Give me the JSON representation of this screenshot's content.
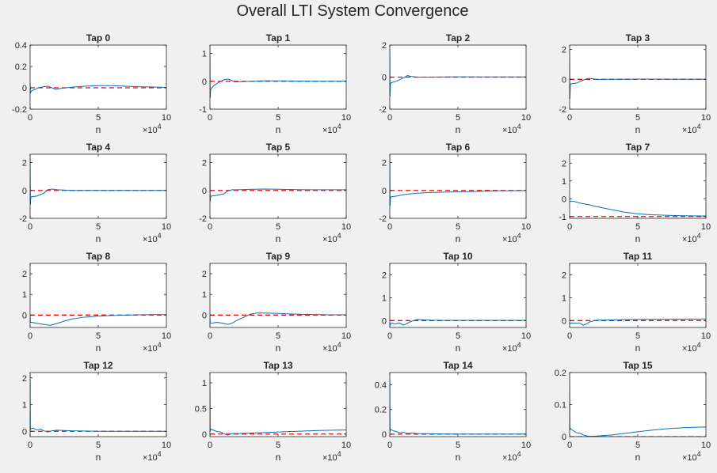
{
  "figure": {
    "title": "Overall LTI System Convergence",
    "colors": {
      "background": "#f0f0f0",
      "axes_background": "#ffffff",
      "estimate_line": "#0072bd",
      "target_line": "#ff0000",
      "axis": "#262626"
    }
  },
  "chart_data": [
    {
      "type": "line",
      "title": "Tap 0",
      "xlabel": "n",
      "x_exponent": "×10^4",
      "xlim": [
        0,
        10
      ],
      "ylim": [
        -0.2,
        0.4
      ],
      "xticks": [
        0,
        5,
        10
      ],
      "yticks": [
        -0.2,
        0,
        0.2,
        0.4
      ],
      "target": 0,
      "series": [
        {
          "x": [
            0,
            0.02,
            0.1,
            0.3,
            0.6,
            1.0,
            1.3,
            1.6,
            1.9,
            2.3,
            3,
            4,
            5,
            6,
            7,
            8,
            9,
            10
          ],
          "y": [
            0.05,
            -0.05,
            -0.03,
            -0.02,
            0,
            0.01,
            0.015,
            0,
            -0.015,
            -0.005,
            0.005,
            0.015,
            0.02,
            0.02,
            0.015,
            0.01,
            0.007,
            0.004
          ]
        }
      ]
    },
    {
      "type": "line",
      "title": "Tap 1",
      "xlabel": "n",
      "x_exponent": "×10^4",
      "xlim": [
        0,
        10
      ],
      "ylim": [
        -1,
        1.3
      ],
      "xticks": [
        0,
        5,
        10
      ],
      "yticks": [
        -1,
        0,
        1
      ],
      "target": 0,
      "series": [
        {
          "x": [
            0,
            0.02,
            0.05,
            0.1,
            0.3,
            0.6,
            1.0,
            1.3,
            1.5,
            1.8,
            2.5,
            4,
            6,
            8,
            10
          ],
          "y": [
            1.2,
            -0.6,
            -0.3,
            -0.25,
            -0.15,
            -0.05,
            0.05,
            0.08,
            0.05,
            -0.02,
            -0.01,
            0.02,
            0.01,
            0.005,
            0.005
          ]
        }
      ]
    },
    {
      "type": "line",
      "title": "Tap 2",
      "xlabel": "n",
      "x_exponent": "×10^4",
      "xlim": [
        0,
        10
      ],
      "ylim": [
        -2,
        2
      ],
      "xticks": [
        0,
        5,
        10
      ],
      "yticks": [
        -2,
        0,
        2
      ],
      "target": 0,
      "series": [
        {
          "x": [
            0,
            0.02,
            0.05,
            0.1,
            0.5,
            1.0,
            1.3,
            1.5,
            2,
            3,
            5,
            7,
            10
          ],
          "y": [
            1.8,
            -1.2,
            -0.4,
            -0.35,
            -0.25,
            -0.05,
            0.1,
            0.05,
            0,
            0,
            0.02,
            0.01,
            0.01
          ]
        }
      ]
    },
    {
      "type": "line",
      "title": "Tap 3",
      "xlabel": "n",
      "x_exponent": "×10^4",
      "xlim": [
        0,
        10
      ],
      "ylim": [
        -2,
        2.3
      ],
      "xticks": [
        0,
        5,
        10
      ],
      "yticks": [
        -2,
        0,
        2
      ],
      "target": 0,
      "series": [
        {
          "x": [
            0,
            0.02,
            0.05,
            0.1,
            0.5,
            1.0,
            1.3,
            1.6,
            2,
            3,
            5,
            7,
            10
          ],
          "y": [
            2.0,
            -1.3,
            -0.35,
            -0.3,
            -0.25,
            -0.05,
            0.05,
            0.05,
            0,
            0,
            0.02,
            0.01,
            0.01
          ]
        }
      ]
    },
    {
      "type": "line",
      "title": "Tap 4",
      "xlabel": "n",
      "x_exponent": "×10^4",
      "xlim": [
        0,
        10
      ],
      "ylim": [
        -2,
        2.6
      ],
      "xticks": [
        0,
        5,
        10
      ],
      "yticks": [
        -2,
        0,
        2
      ],
      "target": 0,
      "series": [
        {
          "x": [
            0,
            0.02,
            0.05,
            0.1,
            0.5,
            1.0,
            1.3,
            1.6,
            2,
            3,
            5,
            7,
            10
          ],
          "y": [
            2.4,
            -1.0,
            -0.5,
            -0.45,
            -0.4,
            -0.2,
            0.05,
            0.1,
            0.05,
            0,
            0,
            0,
            0
          ]
        }
      ]
    },
    {
      "type": "line",
      "title": "Tap 5",
      "xlabel": "n",
      "x_exponent": "×10^4",
      "xlim": [
        0,
        10
      ],
      "ylim": [
        -2,
        2.6
      ],
      "xticks": [
        0,
        5,
        10
      ],
      "yticks": [
        -2,
        0,
        2
      ],
      "target": 0,
      "series": [
        {
          "x": [
            0,
            0.02,
            0.05,
            0.1,
            0.5,
            1.0,
            1.3,
            1.6,
            2,
            3,
            4,
            5,
            7,
            10
          ],
          "y": [
            2.4,
            -0.8,
            -0.45,
            -0.4,
            -0.35,
            -0.25,
            -0.05,
            0.05,
            0.05,
            0.08,
            0.1,
            0.09,
            0.05,
            0.05
          ]
        }
      ]
    },
    {
      "type": "line",
      "title": "Tap 6",
      "xlabel": "n",
      "x_exponent": "×10^4",
      "xlim": [
        0,
        10
      ],
      "ylim": [
        -2,
        2.6
      ],
      "xticks": [
        0,
        5,
        10
      ],
      "yticks": [
        -2,
        0,
        2
      ],
      "target": 0,
      "series": [
        {
          "x": [
            0,
            0.02,
            0.05,
            0.1,
            0.5,
            1.0,
            1.5,
            2,
            3,
            4,
            5,
            6,
            7,
            8,
            9,
            10
          ],
          "y": [
            2.4,
            -1.1,
            -0.5,
            -0.45,
            -0.4,
            -0.3,
            -0.25,
            -0.2,
            -0.15,
            -0.12,
            -0.1,
            -0.08,
            -0.05,
            -0.03,
            -0.02,
            -0.01
          ]
        }
      ]
    },
    {
      "type": "line",
      "title": "Tap 7",
      "xlabel": "n",
      "x_exponent": "×10^4",
      "xlim": [
        0,
        10
      ],
      "ylim": [
        -1.1,
        2.5
      ],
      "xticks": [
        0,
        5,
        10
      ],
      "yticks": [
        -1,
        0,
        1,
        2
      ],
      "target": -1,
      "series": [
        {
          "x": [
            0,
            0.02,
            0.3,
            0.8,
            1.5,
            2,
            3,
            4,
            5,
            6,
            7,
            8,
            9,
            10
          ],
          "y": [
            -0.1,
            -0.15,
            -0.15,
            -0.25,
            -0.35,
            -0.45,
            -0.6,
            -0.75,
            -0.85,
            -0.9,
            -0.93,
            -0.95,
            -0.96,
            -0.97
          ]
        }
      ]
    },
    {
      "type": "line",
      "title": "Tap 8",
      "xlabel": "n",
      "x_exponent": "×10^4",
      "xlim": [
        0,
        10
      ],
      "ylim": [
        -0.6,
        2.5
      ],
      "xticks": [
        0,
        5,
        10
      ],
      "yticks": [
        0,
        1,
        2
      ],
      "target": 0,
      "series": [
        {
          "x": [
            0,
            0.02,
            0.1,
            0.5,
            1.0,
            1.5,
            2,
            2.5,
            3,
            4,
            5,
            6,
            7,
            8,
            9,
            10
          ],
          "y": [
            -0.05,
            -0.35,
            -0.35,
            -0.4,
            -0.45,
            -0.5,
            -0.4,
            -0.3,
            -0.2,
            -0.1,
            -0.05,
            -0.02,
            0,
            0.01,
            0.02,
            0.02
          ]
        }
      ]
    },
    {
      "type": "line",
      "title": "Tap 9",
      "xlabel": "n",
      "x_exponent": "×10^4",
      "xlim": [
        0,
        10
      ],
      "ylim": [
        -0.6,
        2.5
      ],
      "xticks": [
        0,
        5,
        10
      ],
      "yticks": [
        0,
        1,
        2
      ],
      "target": 0,
      "series": [
        {
          "x": [
            0,
            0.02,
            0.1,
            0.5,
            1.0,
            1.3,
            1.6,
            2,
            2.5,
            3,
            3.5,
            4,
            5,
            6,
            7,
            8,
            9,
            10
          ],
          "y": [
            -0.05,
            -0.4,
            -0.4,
            -0.35,
            -0.4,
            -0.45,
            -0.4,
            -0.25,
            -0.1,
            0.05,
            0.1,
            0.1,
            0.08,
            0.05,
            0.03,
            0.02,
            0.01,
            0.01
          ]
        }
      ]
    },
    {
      "type": "line",
      "title": "Tap 10",
      "xlabel": "n",
      "x_exponent": "×10^4",
      "xlim": [
        0,
        10
      ],
      "ylim": [
        -0.3,
        2.5
      ],
      "xticks": [
        0,
        5,
        10
      ],
      "yticks": [
        0,
        1,
        2
      ],
      "target": 0,
      "series": [
        {
          "x": [
            0,
            0.02,
            0.1,
            0.4,
            0.7,
            1.0,
            1.2,
            1.5,
            2,
            3,
            4,
            5,
            7,
            10
          ],
          "y": [
            -0.1,
            -0.2,
            -0.1,
            -0.15,
            -0.1,
            -0.2,
            -0.15,
            -0.05,
            0.05,
            0.02,
            0.01,
            0.01,
            0.01,
            0.01
          ]
        }
      ]
    },
    {
      "type": "line",
      "title": "Tap 11",
      "xlabel": "n",
      "x_exponent": "×10^4",
      "xlim": [
        0,
        10
      ],
      "ylim": [
        -0.3,
        2.5
      ],
      "xticks": [
        0,
        5,
        10
      ],
      "yticks": [
        0,
        1,
        2
      ],
      "target": 0,
      "series": [
        {
          "x": [
            0,
            0.02,
            0.1,
            0.4,
            0.7,
            1.0,
            1.2,
            1.5,
            2,
            3,
            4,
            5,
            7,
            10
          ],
          "y": [
            -0.1,
            -0.15,
            -0.1,
            -0.12,
            -0.1,
            -0.2,
            -0.15,
            -0.05,
            0.02,
            0.03,
            0.04,
            0.05,
            0.06,
            0.07
          ]
        }
      ]
    },
    {
      "type": "line",
      "title": "Tap 12",
      "xlabel": "n",
      "x_exponent": "×10^4",
      "xlim": [
        0,
        10
      ],
      "ylim": [
        -0.2,
        2.2
      ],
      "xticks": [
        0,
        5,
        10
      ],
      "yticks": [
        0,
        1,
        2
      ],
      "target": 0,
      "series": [
        {
          "x": [
            0,
            0.02,
            0.05,
            0.2,
            0.5,
            0.8,
            1.0,
            1.3,
            1.6,
            2,
            3,
            4,
            5,
            7,
            10
          ],
          "y": [
            2.1,
            0.05,
            0.1,
            0.12,
            0.05,
            0.08,
            0.02,
            -0.03,
            0.02,
            0.04,
            0.02,
            0.01,
            0,
            0,
            0
          ]
        }
      ]
    },
    {
      "type": "line",
      "title": "Tap 13",
      "xlabel": "n",
      "x_exponent": "×10^4",
      "xlim": [
        0,
        10
      ],
      "ylim": [
        -0.05,
        1.2
      ],
      "xticks": [
        0,
        5,
        10
      ],
      "yticks": [
        0,
        0.5,
        1
      ],
      "target": 0,
      "series": [
        {
          "x": [
            0,
            0.02,
            0.05,
            0.2,
            0.5,
            0.8,
            1.0,
            1.3,
            1.6,
            2,
            3,
            4,
            5,
            6,
            7,
            8,
            9,
            10
          ],
          "y": [
            1.1,
            0.05,
            0.1,
            0.08,
            0.05,
            0.04,
            0.01,
            -0.02,
            0.01,
            0.01,
            0.02,
            0.03,
            0.04,
            0.05,
            0.06,
            0.07,
            0.075,
            0.08
          ]
        }
      ]
    },
    {
      "type": "line",
      "title": "Tap 14",
      "xlabel": "n",
      "x_exponent": "×10^4",
      "xlim": [
        0,
        10
      ],
      "ylim": [
        -0.02,
        0.5
      ],
      "xticks": [
        0,
        5,
        10
      ],
      "yticks": [
        0,
        0.2,
        0.4
      ],
      "target": 0,
      "series": [
        {
          "x": [
            0,
            0.02,
            0.05,
            0.2,
            0.5,
            0.8,
            1.0,
            1.3,
            1.6,
            2,
            3,
            4,
            5,
            7,
            10
          ],
          "y": [
            0.45,
            0.02,
            0.04,
            0.03,
            0.02,
            0.01,
            0.015,
            0.005,
            0.01,
            0.005,
            0.003,
            0.002,
            0.001,
            0.001,
            0.001
          ]
        }
      ]
    },
    {
      "type": "line",
      "title": "Tap 15",
      "xlabel": "n",
      "x_exponent": "×10^4",
      "xlim": [
        0,
        10
      ],
      "ylim": [
        0,
        0.2
      ],
      "xticks": [
        0,
        5,
        10
      ],
      "yticks": [
        0,
        0.1,
        0.2
      ],
      "target": 0,
      "series": [
        {
          "x": [
            0,
            0.02,
            0.05,
            0.2,
            0.5,
            0.8,
            1.0,
            1.3,
            1.5,
            2,
            3,
            4,
            5,
            6,
            7,
            8,
            9,
            10
          ],
          "y": [
            0.19,
            0.02,
            0.025,
            0.02,
            0.012,
            0.01,
            0.005,
            0.002,
            0.001,
            0.002,
            0.005,
            0.01,
            0.015,
            0.02,
            0.024,
            0.027,
            0.029,
            0.03
          ]
        }
      ]
    }
  ]
}
